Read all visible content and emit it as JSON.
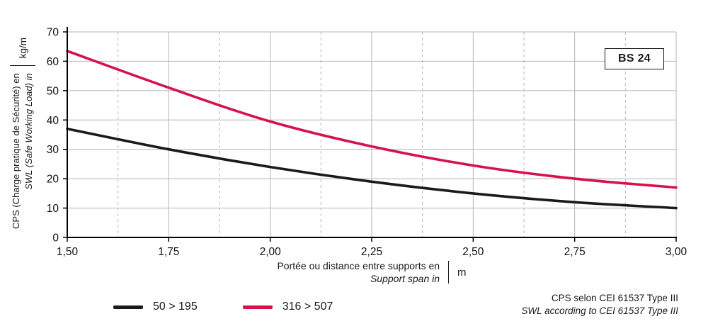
{
  "badge": {
    "label": "BS 24"
  },
  "y_axis": {
    "title_fr": "CPS (Charge pratique de Sécurité) en",
    "title_en": "SWL (Safe Working Load) in",
    "unit": "kg/m"
  },
  "x_axis": {
    "title_fr": "Portée ou distance entre supports en",
    "title_en": "Support span in",
    "unit": "m"
  },
  "legend": [
    {
      "label": "50 > 195",
      "color": "#1a1a1a"
    },
    {
      "label": "316 > 507",
      "color": "#d6124b"
    }
  ],
  "footnote": {
    "line1": "CPS selon CEI 61537 Type III",
    "line2": "SWL according to CEI 61537 Type III"
  },
  "chart_data": {
    "type": "line",
    "x": [
      1.5,
      1.75,
      2.0,
      2.25,
      2.5,
      2.75,
      3.0
    ],
    "x_tick_labels": [
      "1,50",
      "1,75",
      "2,00",
      "2,25",
      "2,50",
      "2,75",
      "3,00"
    ],
    "y_ticks": [
      0,
      10,
      20,
      30,
      40,
      50,
      60,
      70
    ],
    "xlim": [
      1.5,
      3.0
    ],
    "ylim": [
      0,
      70
    ],
    "xlabel": "Portée ou distance entre supports en (Support span in) m",
    "ylabel": "CPS (Charge pratique de Sécurité) en / SWL (Safe Working Load) in kg/m",
    "grid": {
      "horizontal_major": true,
      "vertical_major": true,
      "vertical_minor_dashed": true
    },
    "legend_position": "bottom-left",
    "series": [
      {
        "name": "50 > 195",
        "color": "#1a1a1a",
        "values": [
          37,
          30,
          24,
          19,
          15,
          12,
          10
        ]
      },
      {
        "name": "316 > 507",
        "color": "#d6124b",
        "values": [
          63.5,
          51,
          39.5,
          31,
          24.5,
          20,
          17
        ]
      }
    ]
  }
}
